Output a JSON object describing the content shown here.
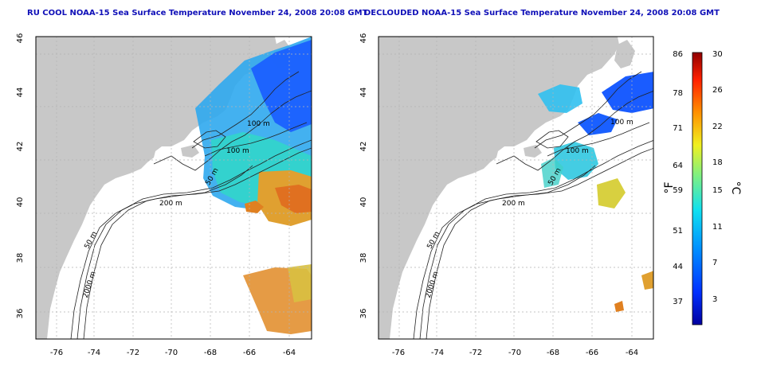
{
  "panels": [
    {
      "title": "RU COOL NOAA-15 Sea Surface Temperature November 24, 2008 20:08 GMT",
      "contour_labels": [
        "100 m",
        "100 m",
        "50 m",
        "200 m",
        "50 m",
        "2000 m"
      ]
    },
    {
      "title": "DECLOUDED NOAA-15 Sea Surface Temperature November 24, 2008 20:08 GMT",
      "contour_labels": [
        "100 m",
        "100 m",
        "50 m",
        "200 m",
        "50 m",
        "2000 m"
      ]
    }
  ],
  "axes": {
    "x_ticks": [
      "-76",
      "-74",
      "-72",
      "-70",
      "-68",
      "-66",
      "-64"
    ],
    "y_ticks": [
      "46",
      "44",
      "42",
      "40",
      "38",
      "36"
    ]
  },
  "colorbar": {
    "f_label": "°F",
    "c_label": "°C",
    "f_ticks": [
      "86",
      "78",
      "71",
      "64",
      "59",
      "51",
      "44",
      "37"
    ],
    "c_ticks": [
      "30",
      "26",
      "22",
      "18",
      "15",
      "11",
      "7",
      "3"
    ]
  },
  "colors": {
    "land": "#c8c8c8",
    "water_nodata": "#ffffff",
    "title": "#1010b8",
    "grid": "#b4b4b4",
    "cold": "#1a3cff",
    "cool": "#18c8ee",
    "mild": "#40e0a0",
    "warm": "#e0d040",
    "hot": "#e07820"
  }
}
